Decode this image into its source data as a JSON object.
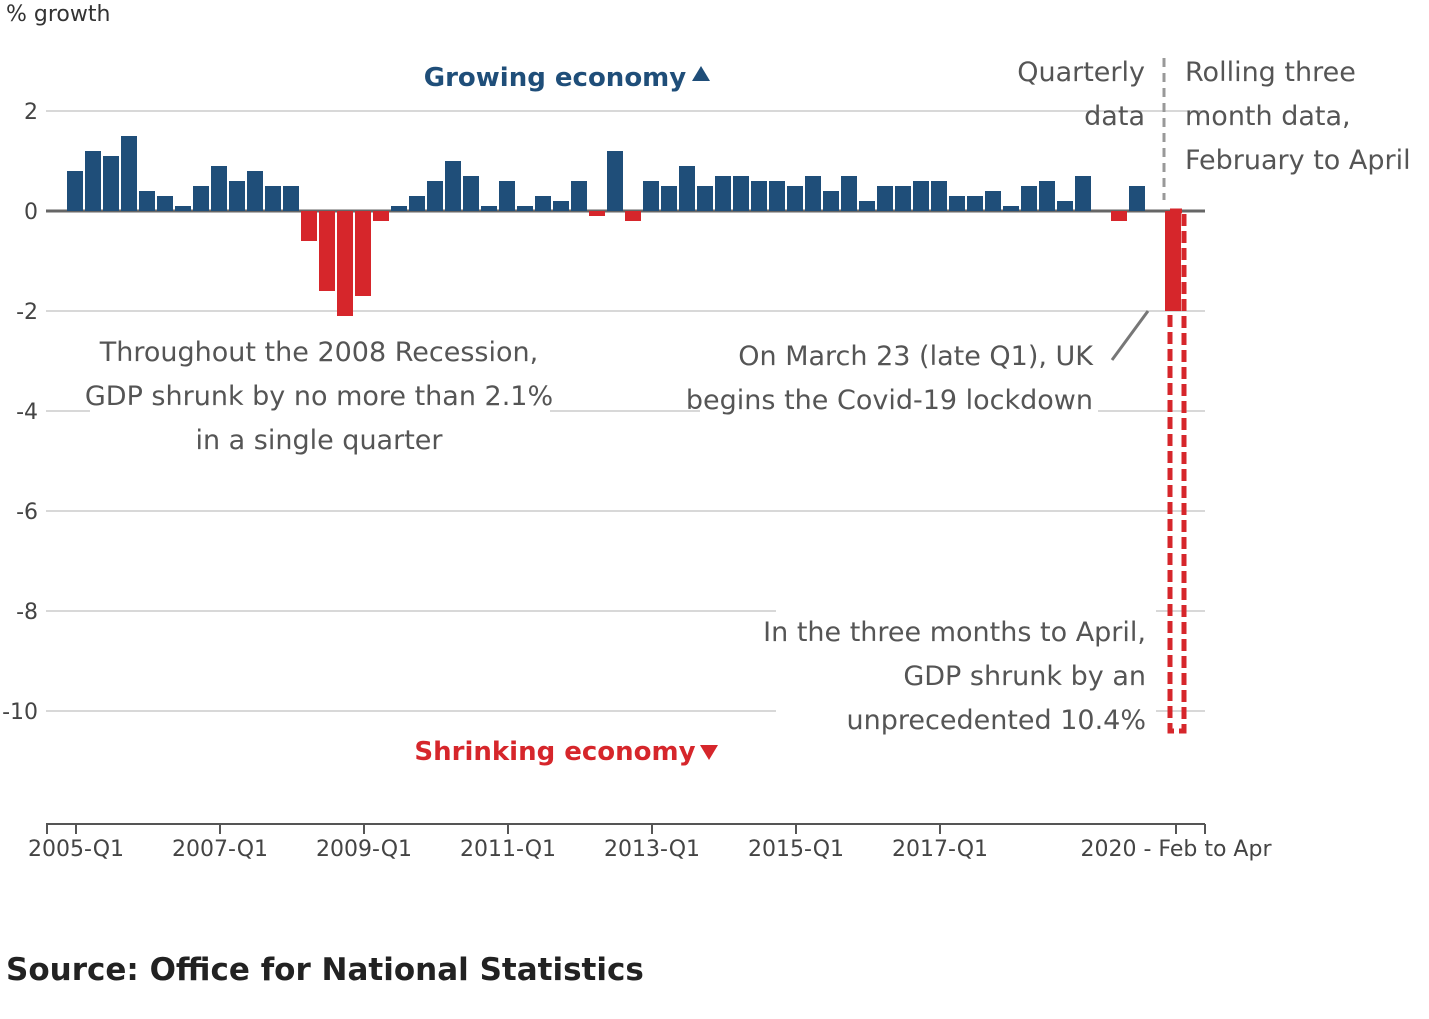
{
  "chart_data": {
    "type": "bar",
    "ylabel": "% growth",
    "ylim": [
      -12,
      3
    ],
    "yticks": [
      2,
      0,
      -2,
      -4,
      -6,
      -8,
      -10
    ],
    "grid": true,
    "x_tick_labels": [
      "2005-Q1",
      "2007-Q1",
      "2009-Q1",
      "2011-Q1",
      "2013-Q1",
      "2015-Q1",
      "2017-Q1",
      "2020 - Feb to Apr"
    ],
    "quarterly_values": [
      0.8,
      1.2,
      1.1,
      1.5,
      0.4,
      0.3,
      0.1,
      0.5,
      0.9,
      0.6,
      0.8,
      0.5,
      0.5,
      -0.6,
      -1.6,
      -2.1,
      -1.7,
      -0.2,
      0.1,
      0.3,
      0.6,
      1.0,
      0.7,
      0.1,
      0.6,
      0.1,
      0.3,
      0.2,
      0.6,
      -0.1,
      1.2,
      -0.2,
      0.6,
      0.5,
      0.9,
      0.5,
      0.7,
      0.7,
      0.6,
      0.6,
      0.5,
      0.7,
      0.4,
      0.7,
      0.2,
      0.5,
      0.5,
      0.6,
      0.6,
      0.3,
      0.3,
      0.4,
      0.1,
      0.5,
      0.6,
      0.2,
      0.7,
      0.0,
      -0.2,
      0.5,
      0.0,
      -2.0
    ],
    "rolling_value": -10.4,
    "positive_color": "#1f4e79",
    "negative_color": "#d6262b",
    "divider_labels": {
      "left": [
        "Quarterly",
        "data"
      ],
      "right": [
        "Rolling three",
        "month data,",
        "February to April"
      ]
    },
    "annotations": {
      "growing": "Growing economy",
      "shrinking": "Shrinking economy",
      "recession": [
        "Throughout the 2008 Recession,",
        "GDP shrunk by no more than 2.1%",
        "in a single quarter"
      ],
      "lockdown": [
        "On March 23 (late Q1), UK",
        "begins the Covid-19 lockdown"
      ],
      "april": [
        "In the three months to April,",
        "GDP shrunk by an",
        "unprecedented 10.4%"
      ]
    }
  },
  "source": "Source: Office for National Statistics"
}
